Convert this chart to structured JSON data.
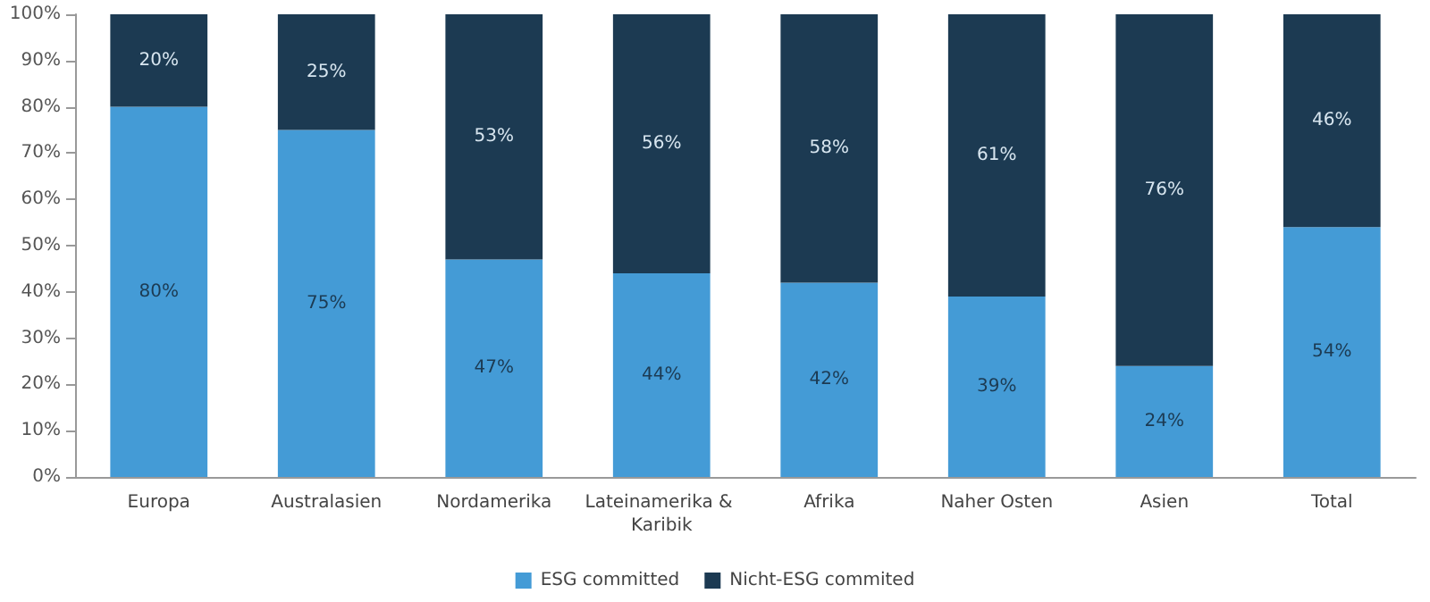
{
  "chart_data": {
    "type": "bar",
    "stacked": true,
    "categories": [
      "Europa",
      "Australasien",
      "Nordamerika",
      "Lateinamerika & Karibik",
      "Afrika",
      "Naher Osten",
      "Asien",
      "Total"
    ],
    "series": [
      {
        "name": "ESG committed",
        "color": "#449bd6",
        "values": [
          80,
          75,
          47,
          44,
          42,
          39,
          24,
          54
        ],
        "value_labels": [
          "80%",
          "75%",
          "47%",
          "44%",
          "42%",
          "39%",
          "24%",
          "54%"
        ]
      },
      {
        "name": "Nicht-ESG commited",
        "color": "#1c3a52",
        "values": [
          20,
          25,
          53,
          56,
          58,
          61,
          76,
          46
        ],
        "value_labels": [
          "20%",
          "25%",
          "53%",
          "56%",
          "58%",
          "61%",
          "76%",
          "46%"
        ]
      }
    ],
    "ylim": [
      0,
      100
    ],
    "yticks": [
      {
        "value": 0,
        "label": "0%"
      },
      {
        "value": 10,
        "label": "10%"
      },
      {
        "value": 20,
        "label": "20%"
      },
      {
        "value": 30,
        "label": "30%"
      },
      {
        "value": 40,
        "label": "40%"
      },
      {
        "value": 50,
        "label": "50%"
      },
      {
        "value": 60,
        "label": "60%"
      },
      {
        "value": 70,
        "label": "70%"
      },
      {
        "value": 80,
        "label": "80%"
      },
      {
        "value": 90,
        "label": "90%"
      },
      {
        "value": 100,
        "label": "100%"
      }
    ],
    "grid": false,
    "legend": "bottom"
  }
}
